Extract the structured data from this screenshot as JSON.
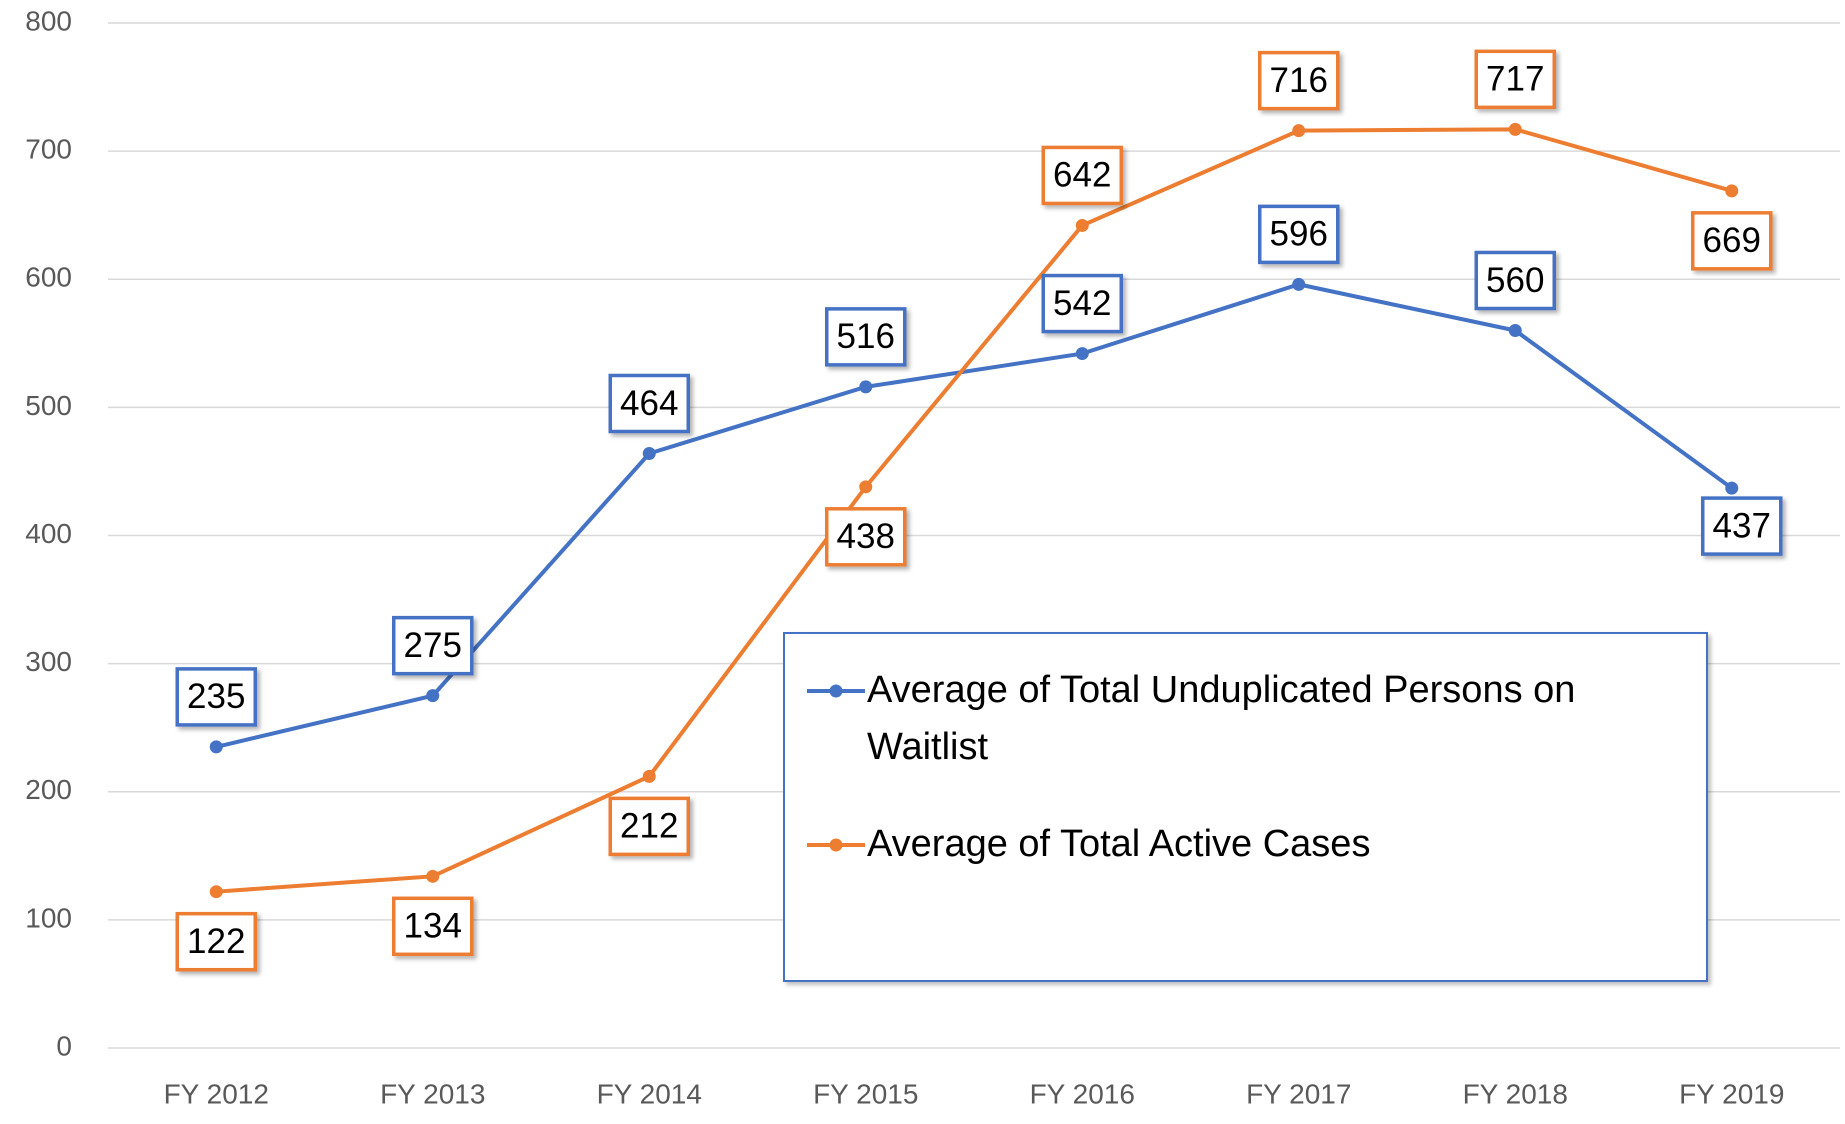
{
  "chart_data": {
    "type": "line",
    "categories": [
      "FY 2012",
      "FY 2013",
      "FY 2014",
      "FY 2015",
      "FY 2016",
      "FY 2017",
      "FY 2018",
      "FY 2019"
    ],
    "series": [
      {
        "name": "Average of Total Unduplicated Persons on Waitlist",
        "color": "#4472c4",
        "values": [
          235,
          275,
          464,
          516,
          542,
          596,
          560,
          437
        ]
      },
      {
        "name": "Average of Total Active Cases",
        "color": "#ed7d31",
        "values": [
          122,
          134,
          212,
          438,
          642,
          716,
          717,
          669
        ]
      }
    ],
    "ylim": [
      0,
      800
    ],
    "yticks": [
      0,
      100,
      200,
      300,
      400,
      500,
      600,
      700,
      800
    ],
    "grid": true,
    "legend": "lower right"
  }
}
